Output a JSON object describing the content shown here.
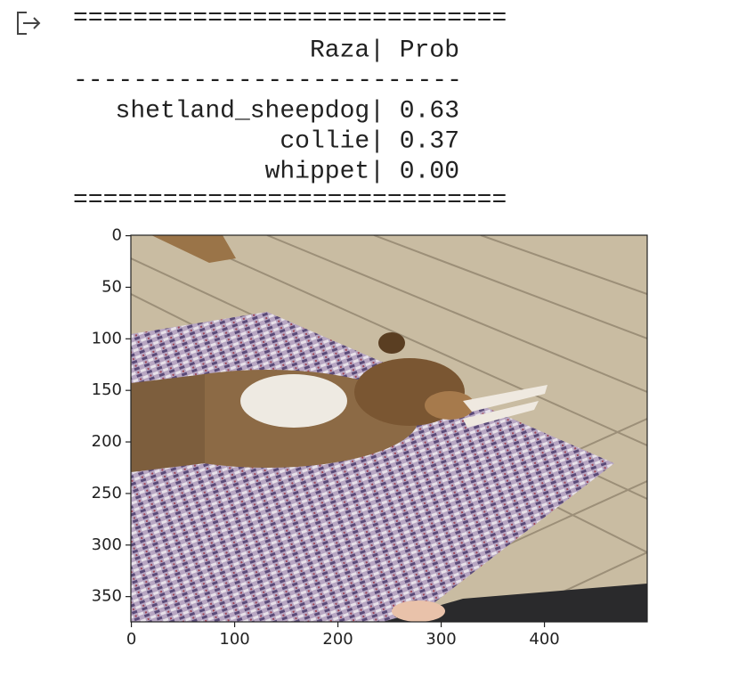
{
  "table": {
    "top_rule": "=============================",
    "header": "Raza| Prob",
    "mid_rule": "--------------------------",
    "rows": [
      "shetland_sheepdog| 0.63",
      "collie| 0.37",
      "whippet| 0.00"
    ],
    "bottom_rule": "============================="
  },
  "plot": {
    "xlim": [
      -0.5,
      499.5
    ],
    "ylim": [
      374.5,
      -0.5
    ],
    "xticks": [
      0,
      100,
      200,
      300,
      400
    ],
    "yticks": [
      0,
      50,
      100,
      150,
      200,
      250,
      300,
      350
    ]
  }
}
